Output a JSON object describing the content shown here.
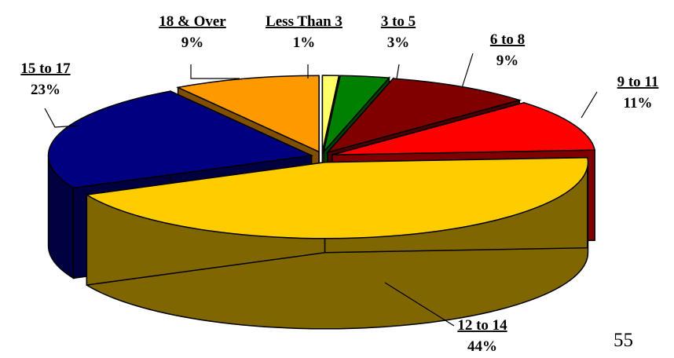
{
  "chart_data": {
    "type": "pie",
    "title": "",
    "categories": [
      "Less Than 3",
      "3 to 5",
      "6 to 8",
      "9 to 11",
      "12 to 14",
      "15 to 17",
      "18 & Over"
    ],
    "values": [
      1,
      3,
      9,
      11,
      44,
      23,
      9
    ],
    "value_labels": [
      "1%",
      "3%",
      "9%",
      "11%",
      "44%",
      "23%",
      "9%"
    ],
    "colors": [
      "#FFFF66",
      "#008000",
      "#800000",
      "#FF0000",
      "#FFCC00",
      "#000080",
      "#FF9900"
    ],
    "side_colors": [
      "#999900",
      "#004000",
      "#4a0000",
      "#800000",
      "#806600",
      "#000040",
      "#805000"
    ],
    "style": "3d-exploded",
    "legend": "none"
  },
  "page_number": "55"
}
